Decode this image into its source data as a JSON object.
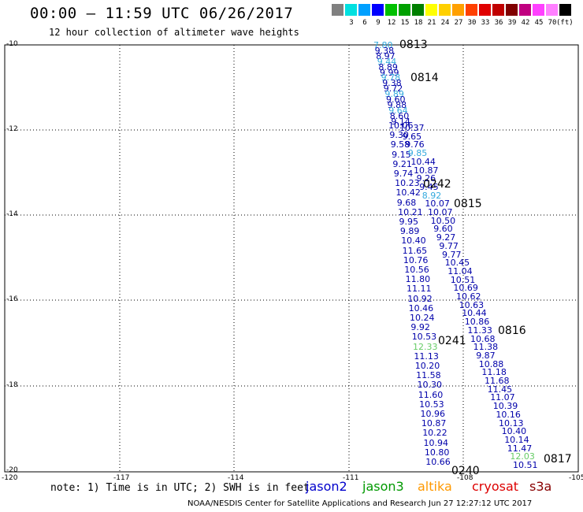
{
  "header": {
    "title": "00:00 – 11:59 UTC 06/26/2017",
    "subtitle": "12 hour collection of altimeter wave heights"
  },
  "color_scale": {
    "unit": "(ft)",
    "colors": [
      "#808080",
      "#00e0e0",
      "#00a0ff",
      "#0000ff",
      "#00c000",
      "#00a000",
      "#008000",
      "#ffff00",
      "#ffd000",
      "#ffa000",
      "#ff4000",
      "#e00000",
      "#c00000",
      "#800000",
      "#c00080",
      "#ff40ff",
      "#ff80ff",
      "#000000"
    ],
    "labels": [
      "3",
      "6",
      "9",
      "12",
      "15",
      "18",
      "21",
      "24",
      "27",
      "30",
      "33",
      "36",
      "39",
      "42",
      "45",
      "70"
    ]
  },
  "axes": {
    "lat_labels": [
      "-10",
      "-12",
      "-14",
      "-16",
      "-18",
      "-20"
    ],
    "lon_labels": [
      "-120",
      "-117",
      "-114",
      "-111",
      "-108",
      "-105"
    ]
  },
  "note": "note: 1) Time is in UTC; 2) SWH is in feet",
  "satellites": [
    {
      "name": "jason2",
      "color": "#0000cc"
    },
    {
      "name": "jason3",
      "color": "#009900"
    },
    {
      "name": "altika",
      "color": "#ff9900"
    },
    {
      "name": "cryosat",
      "color": "#dd0000"
    },
    {
      "name": "s3a",
      "color": "#880000"
    }
  ],
  "credit": "NOAA/NESDIS Center for Satellite Applications and Research   Jun 27 12:27:12 UTC 2017",
  "tracks": {
    "left": [
      "10.06",
      "9.30",
      "9.58",
      "9.15",
      "9.21",
      "9.74",
      "10.23",
      "10.42",
      "9.68",
      "10.21",
      "9.95",
      "9.89",
      "10.40",
      "11.65",
      "10.76",
      "10.56",
      "11.80",
      "11.11",
      "10.92",
      "10.46",
      "10.24",
      "9.92",
      "10.53",
      "12.33",
      "11.13",
      "10.20",
      "11.58",
      "10.30",
      "11.60",
      "10.53",
      "10.96",
      "10.87",
      "10.22",
      "10.94",
      "10.80",
      "10.66"
    ],
    "right": [
      "10.37",
      "9.65",
      "9.76",
      "9.85",
      "10.44",
      "10.87",
      "9.26",
      "9.45",
      "8.92",
      "10.07",
      "10.07",
      "10.50",
      "9.60",
      "9.27",
      "9.77",
      "9.77",
      "10.45",
      "11.04",
      "10.51",
      "10.69",
      "10.62",
      "10.63",
      "10.44",
      "10.86",
      "11.33",
      "10.68",
      "11.38",
      "9.87",
      "10.88",
      "11.18",
      "11.68",
      "11.45",
      "11.07",
      "10.39",
      "10.16",
      "10.13",
      "10.40",
      "10.14",
      "11.47",
      "12.03",
      "10.51"
    ],
    "top": [
      "7.80",
      "9.38",
      "8.97",
      "9.44",
      "8.89",
      "9.99",
      "9.78",
      "9.38",
      "9.72",
      "9.89",
      "9.60",
      "9.88",
      "9.64",
      "8.60",
      "9.14"
    ]
  },
  "revs": [
    {
      "id": "0813",
      "color": "#008000"
    },
    {
      "id": "0814",
      "color": "#008000"
    },
    {
      "id": "0242",
      "color": "#dd0000"
    },
    {
      "id": "0815",
      "color": "#008000"
    },
    {
      "id": "0816",
      "color": "#008000"
    },
    {
      "id": "0241",
      "color": "#dd0000"
    },
    {
      "id": "0817",
      "color": "#008000"
    },
    {
      "id": "0240",
      "color": "#dd0000"
    }
  ]
}
